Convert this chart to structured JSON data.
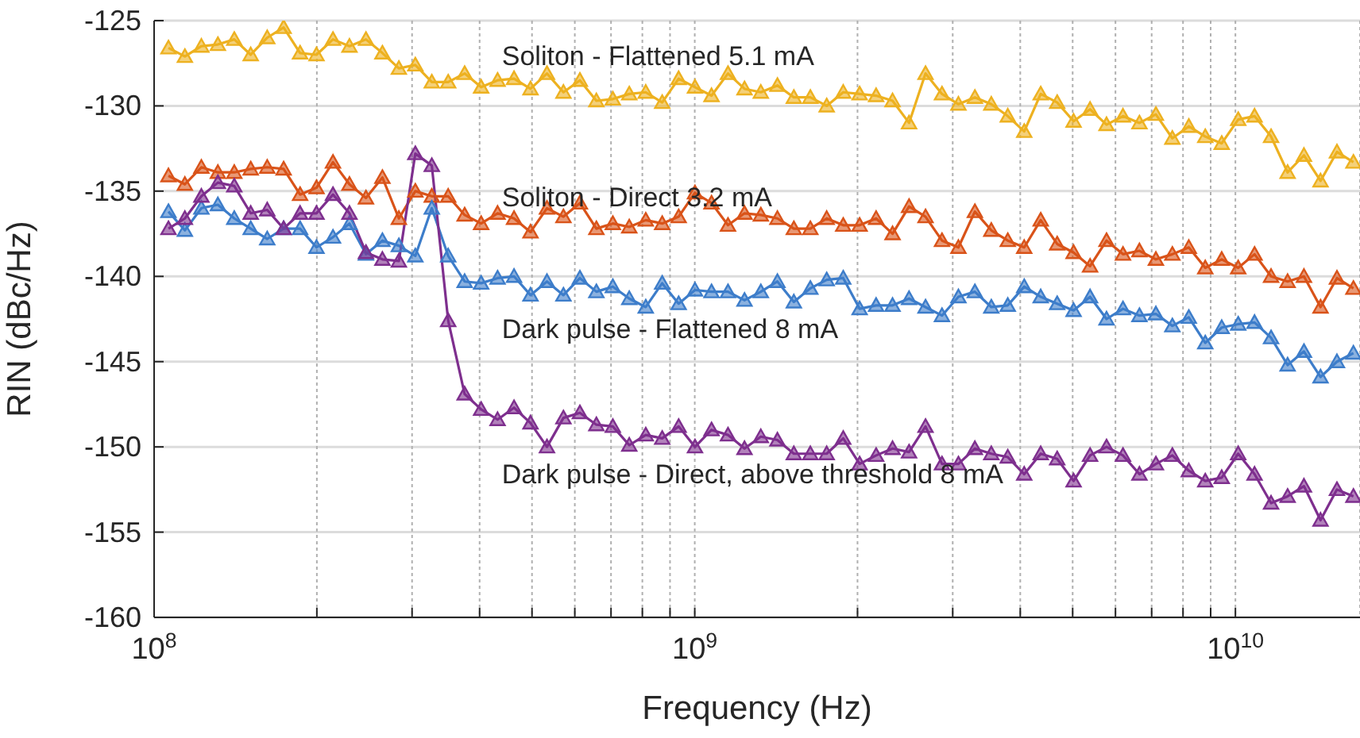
{
  "chart_data": {
    "type": "line",
    "xlabel": "Frequency (Hz)",
    "ylabel": "RIN (dBc/Hz)",
    "log": "x",
    "grid": true,
    "marker": "triangle",
    "line_style": "solid",
    "xlim": [
      100000000.0,
      17000000000.0
    ],
    "ylim": [
      -160,
      -125
    ],
    "xticks": [
      {
        "value": 100000000.0,
        "label": "10$^{8}$"
      },
      {
        "value": 200000000.0,
        "label": null
      },
      {
        "value": 300000000.0,
        "label": null
      },
      {
        "value": 400000000.0,
        "label": null
      },
      {
        "value": 500000000.0,
        "label": null
      },
      {
        "value": 600000000.0,
        "label": null
      },
      {
        "value": 700000000.0,
        "label": null
      },
      {
        "value": 800000000.0,
        "label": null
      },
      {
        "value": 900000000.0,
        "label": null
      },
      {
        "value": 1000000000.0,
        "label": "10$^{9}$"
      },
      {
        "value": 2000000000.0,
        "label": null
      },
      {
        "value": 3000000000.0,
        "label": null
      },
      {
        "value": 4000000000.0,
        "label": null
      },
      {
        "value": 5000000000.0,
        "label": null
      },
      {
        "value": 6000000000.0,
        "label": null
      },
      {
        "value": 7000000000.0,
        "label": null
      },
      {
        "value": 8000000000.0,
        "label": null
      },
      {
        "value": 9000000000.0,
        "label": null
      },
      {
        "value": 10000000000.0,
        "label": "10$^{10}$"
      }
    ],
    "yticks": [
      -160,
      -155,
      -150,
      -145,
      -140,
      -135,
      -130,
      -125
    ],
    "x": [
      106300000.0,
      114000000.0,
      122300000.0,
      131200000.0,
      140700000.0,
      150900000.0,
      161900000.0,
      173600000.0,
      186200000.0,
      199700000.0,
      214200000.0,
      229800000.0,
      246500000.0,
      264400000.0,
      283600000.0,
      304200000.0,
      326300000.0,
      349900000.0,
      375300000.0,
      402600000.0,
      431800000.0,
      463200000.0,
      496800000.0,
      532900000.0,
      571600000.0,
      613100000.0,
      657700000.0,
      705400000.0,
      756600000.0,
      811600000.0,
      870500000.0,
      933700000.0,
      1001000000.0,
      1074000000.0,
      1152000000.0,
      1236000000.0,
      1325000000.0,
      1422000000.0,
      1525000000.0,
      1636000000.0,
      1754000000.0,
      1882000000.0,
      2018000000.0,
      2165000000.0,
      2322000000.0,
      2491000000.0,
      2672000000.0,
      2866000000.0,
      3074000000.0,
      3297000000.0,
      3536000000.0,
      3793000000.0,
      4068000000.0,
      4364000000.0,
      4681000000.0,
      5020000000.0,
      5385000000.0,
      5776000000.0,
      6195000000.0,
      6645000000.0,
      7127000000.0,
      7645000000.0,
      8200000000.0,
      8795000000.0,
      9434000000.0,
      10120000000.0,
      10850000000.0,
      11640000000.0,
      12490000000.0,
      13390000000.0,
      14370000000.0,
      15410000000.0,
      16530000000.0
    ],
    "series": [
      {
        "name": "Soliton - Flattened 5.1 mA",
        "color": "#edb120",
        "values": [
          -126.6,
          -127.1,
          -126.5,
          -126.4,
          -126.1,
          -127.0,
          -126.0,
          -125.4,
          -126.9,
          -127.0,
          -126.1,
          -126.5,
          -126.1,
          -126.9,
          -127.8,
          -127.6,
          -128.6,
          -128.6,
          -128.1,
          -128.9,
          -128.5,
          -128.4,
          -129.0,
          -128.1,
          -129.2,
          -128.5,
          -129.7,
          -129.6,
          -129.3,
          -129.2,
          -129.8,
          -128.4,
          -128.9,
          -129.4,
          -128.1,
          -129.0,
          -129.2,
          -128.8,
          -129.5,
          -129.5,
          -130.0,
          -129.2,
          -129.3,
          -129.4,
          -129.7,
          -131.0,
          -128.1,
          -129.3,
          -129.9,
          -129.5,
          -129.9,
          -130.6,
          -131.5,
          -129.3,
          -129.8,
          -130.9,
          -130.2,
          -131.1,
          -130.6,
          -131.0,
          -130.5,
          -131.9,
          -131.2,
          -131.8,
          -132.2,
          -130.8,
          -130.6,
          -131.8,
          -133.9,
          -132.9,
          -134.4,
          -132.7,
          -133.3
        ]
      },
      {
        "name": "Soliton - Direct 3.2 mA",
        "color": "#d95319",
        "values": [
          -134.1,
          -134.6,
          -133.6,
          -133.9,
          -133.9,
          -133.7,
          -133.6,
          -133.7,
          -135.2,
          -134.8,
          -133.3,
          -134.6,
          -135.4,
          -134.2,
          -136.6,
          -135.0,
          -135.3,
          -135.3,
          -136.4,
          -136.9,
          -136.3,
          -136.6,
          -137.4,
          -136.0,
          -136.5,
          -135.7,
          -137.2,
          -136.9,
          -137.1,
          -136.7,
          -136.9,
          -136.5,
          -135.1,
          -135.7,
          -137.0,
          -136.3,
          -136.4,
          -136.6,
          -137.2,
          -137.2,
          -136.6,
          -137.0,
          -137.0,
          -136.6,
          -137.5,
          -135.9,
          -136.5,
          -137.9,
          -138.3,
          -136.2,
          -137.3,
          -137.9,
          -138.3,
          -136.7,
          -138.1,
          -138.6,
          -139.4,
          -137.9,
          -138.7,
          -138.5,
          -139.0,
          -138.7,
          -138.3,
          -139.5,
          -139.0,
          -139.5,
          -138.7,
          -140.0,
          -140.3,
          -140.0,
          -141.8,
          -140.1,
          -140.7
        ]
      },
      {
        "name": "Dark pulse - Flattened 8 mA",
        "color": "#3d7dca",
        "values": [
          -136.2,
          -137.3,
          -136.0,
          -135.8,
          -136.6,
          -137.2,
          -137.8,
          -137.2,
          -137.2,
          -138.3,
          -137.7,
          -136.9,
          -138.7,
          -137.9,
          -138.2,
          -138.8,
          -136.0,
          -138.8,
          -140.3,
          -140.4,
          -140.1,
          -140.0,
          -141.1,
          -140.3,
          -141.1,
          -140.1,
          -140.9,
          -140.6,
          -141.3,
          -141.8,
          -140.4,
          -141.6,
          -140.8,
          -140.9,
          -140.9,
          -141.4,
          -140.9,
          -140.3,
          -141.5,
          -140.7,
          -140.2,
          -140.1,
          -141.9,
          -141.7,
          -141.7,
          -141.3,
          -141.8,
          -142.3,
          -141.2,
          -140.9,
          -141.8,
          -141.7,
          -140.6,
          -141.2,
          -141.6,
          -142.0,
          -141.2,
          -142.5,
          -141.9,
          -142.3,
          -142.2,
          -142.9,
          -142.4,
          -143.9,
          -143.0,
          -142.8,
          -142.7,
          -143.6,
          -145.2,
          -144.4,
          -145.9,
          -145.0,
          -144.5
        ]
      },
      {
        "name": "Dark pulse - Direct, above threshold 8 mA",
        "color": "#7e2f8e",
        "values": [
          -137.2,
          -136.6,
          -135.3,
          -134.5,
          -134.7,
          -136.3,
          -136.1,
          -137.2,
          -136.3,
          -136.3,
          -135.2,
          -136.3,
          -138.6,
          -139.0,
          -139.1,
          -132.8,
          -133.5,
          -142.6,
          -146.9,
          -147.8,
          -148.4,
          -147.7,
          -148.6,
          -150.0,
          -148.3,
          -148.0,
          -148.7,
          -148.8,
          -149.9,
          -149.3,
          -149.5,
          -148.8,
          -150.0,
          -149.0,
          -149.3,
          -150.1,
          -149.4,
          -149.6,
          -150.4,
          -150.4,
          -150.4,
          -149.5,
          -151.0,
          -150.5,
          -150.1,
          -150.3,
          -148.8,
          -151.0,
          -151.0,
          -150.1,
          -150.4,
          -150.6,
          -151.6,
          -150.4,
          -150.7,
          -152.0,
          -150.5,
          -150.0,
          -150.5,
          -151.6,
          -151.0,
          -150.5,
          -151.4,
          -152.0,
          -151.8,
          -150.4,
          -151.6,
          -153.3,
          -152.9,
          -152.3,
          -154.3,
          -152.5,
          -152.9
        ]
      }
    ]
  }
}
